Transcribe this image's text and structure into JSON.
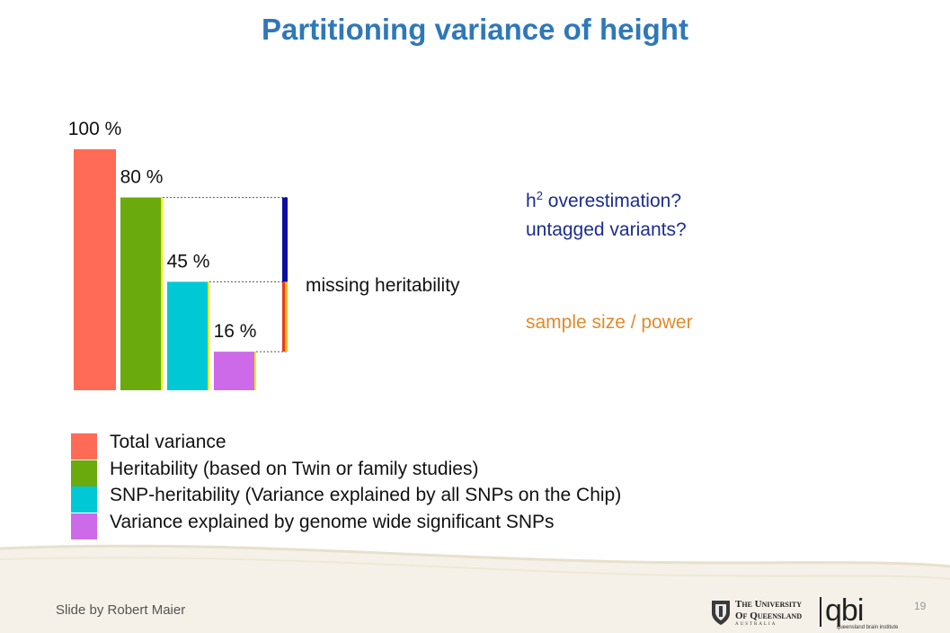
{
  "title": "Partitioning variance of height",
  "chart_data": {
    "type": "bar",
    "categories": [
      "Total variance",
      "Heritability",
      "SNP-heritability",
      "Genome-wide significant SNPs"
    ],
    "values": [
      100,
      80,
      45,
      16
    ],
    "value_labels": [
      "100 %",
      "80 %",
      "45 %",
      "16 %"
    ],
    "colors": [
      "#ff6b57",
      "#6aaa0c",
      "#00c8d4",
      "#cc6aea"
    ],
    "ylim": [
      0,
      100
    ],
    "grid": false
  },
  "annotations": {
    "missing_label": "missing heritability",
    "blue_lines": [
      "overestimation?",
      "untagged variants?"
    ],
    "blue_prefix": "h",
    "blue_sup": "2",
    "orange_line": "sample size / power",
    "bracket_colors": {
      "upper": "#0a0f9e",
      "lower_left": "#e8392a",
      "lower_right": "#f2c200"
    }
  },
  "legend": [
    {
      "label": "Total variance",
      "color": "#ff6b57"
    },
    {
      "label": "Heritability (based on Twin or family studies)",
      "color": "#6aaa0c"
    },
    {
      "label": "SNP-heritability (Variance explained by all SNPs on the Chip)",
      "color": "#00c8d4"
    },
    {
      "label": "Variance explained by genome wide significant SNPs",
      "color": "#cc6aea"
    }
  ],
  "footer": {
    "credit": "Slide by Robert Maier",
    "uq_line1": "The University",
    "uq_line2": "Of Queensland",
    "uq_line3": "AUSTRALIA",
    "qbi_logo": "qbi",
    "qbi_tagline": "queensland brain institute",
    "page_number": "19"
  }
}
